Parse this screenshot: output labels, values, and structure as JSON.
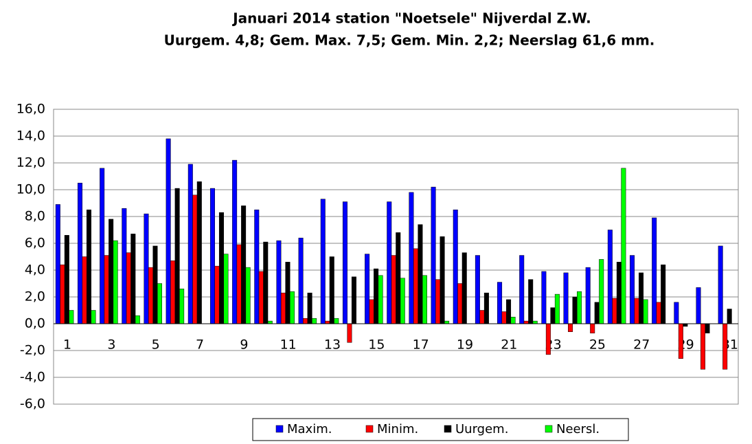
{
  "chart_data": {
    "type": "bar",
    "title": "Januari 2014 station \"Noetsele\" Nijverdal Z.W.",
    "subtitle": "Uurgem. 4,8;  Gem. Max. 7,5; Gem. Min. 2,2;  Neerslag 61,6 mm.",
    "categories": [
      "1",
      null,
      "3",
      null,
      "5",
      null,
      "7",
      null,
      "9",
      null,
      "11",
      null,
      "13",
      null,
      "15",
      null,
      "17",
      null,
      "19",
      null,
      "21",
      null,
      "23",
      null,
      "25",
      null,
      "27",
      null,
      "29",
      null,
      "31"
    ],
    "series": [
      {
        "name": "Maxim.",
        "color": "#0000ff",
        "values": [
          8.9,
          10.5,
          11.6,
          8.6,
          8.2,
          13.8,
          11.9,
          10.1,
          12.2,
          8.5,
          6.2,
          6.4,
          9.3,
          9.1,
          5.2,
          9.1,
          9.8,
          10.2,
          8.5,
          5.1,
          3.1,
          5.1,
          3.9,
          3.8,
          4.2,
          7.0,
          5.1,
          7.9,
          1.6,
          2.7,
          5.8
        ]
      },
      {
        "name": "Minim.",
        "color": "#ff0000",
        "values": [
          4.4,
          5.0,
          5.1,
          5.3,
          4.2,
          4.7,
          9.6,
          4.3,
          5.9,
          3.9,
          2.3,
          0.4,
          0.2,
          -1.4,
          1.8,
          5.1,
          5.6,
          3.3,
          3.0,
          1.0,
          0.9,
          0.2,
          -2.3,
          -0.6,
          -0.7,
          1.9,
          1.9,
          1.6,
          -2.6,
          -3.4,
          -3.4
        ]
      },
      {
        "name": "Uurgem.",
        "color": "#000000",
        "values": [
          6.6,
          8.5,
          7.8,
          6.7,
          5.8,
          10.1,
          10.6,
          8.3,
          8.8,
          6.1,
          4.6,
          2.3,
          5.0,
          3.5,
          4.1,
          6.8,
          7.4,
          6.5,
          5.3,
          2.3,
          1.8,
          3.3,
          1.2,
          2.0,
          1.6,
          4.6,
          3.8,
          4.4,
          -0.2,
          -0.7,
          1.1
        ]
      },
      {
        "name": "Neersl.",
        "color": "#00ff00",
        "values": [
          1.0,
          1.0,
          6.2,
          0.6,
          3.0,
          2.6,
          0,
          5.2,
          4.2,
          0.2,
          2.4,
          0.4,
          0.4,
          0,
          3.6,
          3.4,
          3.6,
          0.2,
          0,
          0,
          0.5,
          0.2,
          2.2,
          2.4,
          4.8,
          11.6,
          1.8,
          0,
          0,
          0,
          0
        ]
      }
    ],
    "ylim": [
      -6,
      16
    ],
    "yticks": [
      {
        "value": -6,
        "label": "-6,0"
      },
      {
        "value": -4,
        "label": "-4,0"
      },
      {
        "value": -2,
        "label": "-2,0"
      },
      {
        "value": 0,
        "label": "0,0"
      },
      {
        "value": 2,
        "label": "2,0"
      },
      {
        "value": 4,
        "label": "4,0"
      },
      {
        "value": 6,
        "label": "6,0"
      },
      {
        "value": 8,
        "label": "8,0"
      },
      {
        "value": 10,
        "label": "10,0"
      },
      {
        "value": 12,
        "label": "12,0"
      },
      {
        "value": 14,
        "label": "14,0"
      },
      {
        "value": 16,
        "label": "16,0"
      }
    ],
    "grid": true
  }
}
